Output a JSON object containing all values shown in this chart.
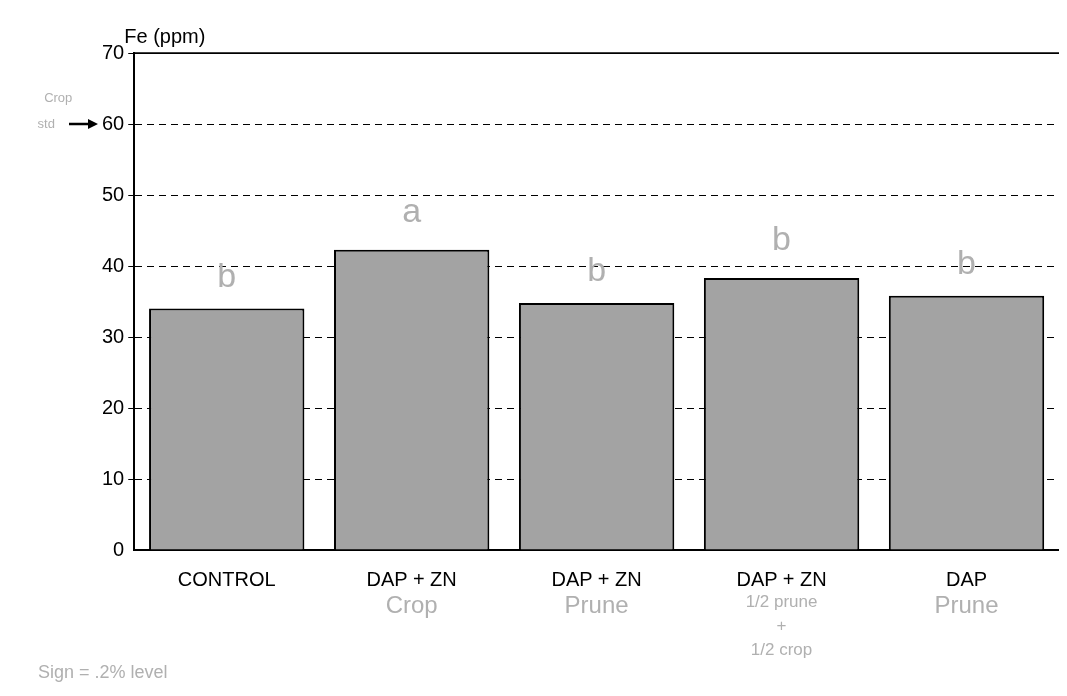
{
  "chart_data": {
    "type": "bar",
    "ylabel": "Fe (ppm)",
    "categories": [
      "CONTROL",
      "DAP + ZN\nCrop",
      "DAP + ZN\nPrune",
      "DAP + ZN\n1/2 prune\n+\n1/2 crop",
      "DAP\nPrune"
    ],
    "values": [
      34,
      42.3,
      34.8,
      38.3,
      35.8
    ],
    "color": "#a3a3a3",
    "ylim": [
      0,
      70
    ],
    "yticks": [
      0,
      10,
      20,
      30,
      40,
      50,
      60,
      70
    ],
    "grid": "y",
    "line_style": "dashed",
    "annotations": [
      "b",
      "a",
      "b",
      "b",
      "b",
      "Crop std",
      "Sign = .2% level"
    ]
  }
}
